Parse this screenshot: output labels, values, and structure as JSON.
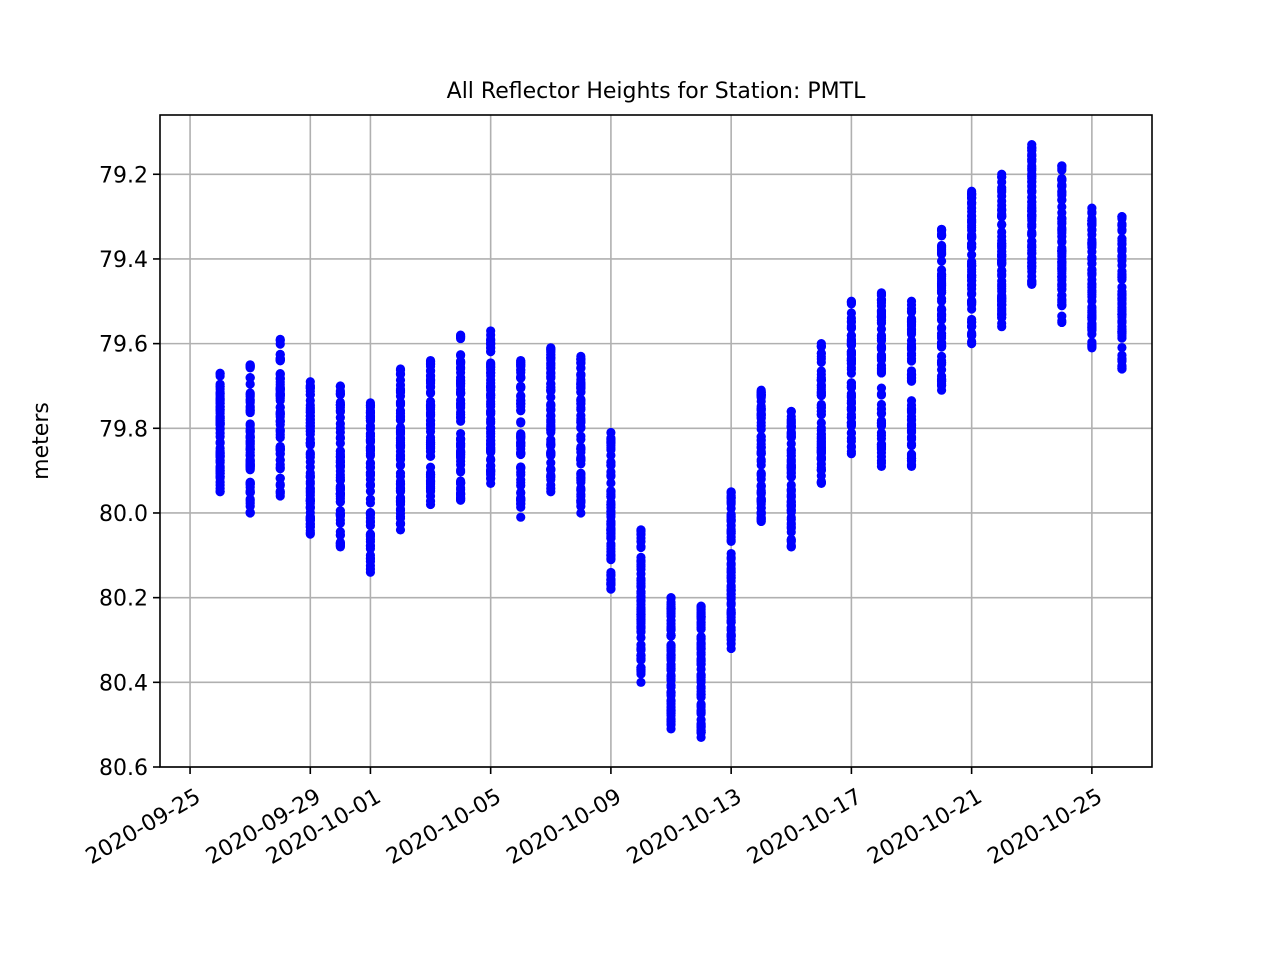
{
  "chart_data": {
    "type": "scatter",
    "title": "All Reflector Heights for Station: PMTL",
    "xlabel": "",
    "ylabel": "meters",
    "y_inverted": true,
    "ylim": [
      80.6,
      79.06
    ],
    "xlim": [
      "2020-09-24",
      "2020-10-27"
    ],
    "grid": true,
    "marker_color": "#0000ff",
    "x_ticks": [
      "2020-09-25",
      "2020-09-29",
      "2020-10-01",
      "2020-10-05",
      "2020-10-09",
      "2020-10-13",
      "2020-10-17",
      "2020-10-21",
      "2020-10-25"
    ],
    "y_ticks": [
      "79.2",
      "79.4",
      "79.6",
      "79.8",
      "80.0",
      "80.2",
      "80.4",
      "80.6"
    ],
    "daily_ranges": [
      {
        "date": "2020-09-26",
        "min": 79.67,
        "max": 79.95
      },
      {
        "date": "2020-09-27",
        "min": 79.65,
        "max": 80.0
      },
      {
        "date": "2020-09-28",
        "min": 79.59,
        "max": 79.96
      },
      {
        "date": "2020-09-29",
        "min": 79.69,
        "max": 80.05
      },
      {
        "date": "2020-09-30",
        "min": 79.7,
        "max": 80.08
      },
      {
        "date": "2020-10-01",
        "min": 79.74,
        "max": 80.14
      },
      {
        "date": "2020-10-02",
        "min": 79.66,
        "max": 80.04
      },
      {
        "date": "2020-10-03",
        "min": 79.64,
        "max": 79.98
      },
      {
        "date": "2020-10-04",
        "min": 79.58,
        "max": 79.97
      },
      {
        "date": "2020-10-05",
        "min": 79.57,
        "max": 79.93
      },
      {
        "date": "2020-10-06",
        "min": 79.64,
        "max": 80.01
      },
      {
        "date": "2020-10-07",
        "min": 79.61,
        "max": 79.95
      },
      {
        "date": "2020-10-08",
        "min": 79.63,
        "max": 80.0
      },
      {
        "date": "2020-10-09",
        "min": 79.81,
        "max": 80.18
      },
      {
        "date": "2020-10-10",
        "min": 80.04,
        "max": 80.4
      },
      {
        "date": "2020-10-11",
        "min": 80.2,
        "max": 80.51
      },
      {
        "date": "2020-10-12",
        "min": 80.22,
        "max": 80.53
      },
      {
        "date": "2020-10-13",
        "min": 79.95,
        "max": 80.32
      },
      {
        "date": "2020-10-14",
        "min": 79.71,
        "max": 80.02
      },
      {
        "date": "2020-10-15",
        "min": 79.76,
        "max": 80.08
      },
      {
        "date": "2020-10-16",
        "min": 79.6,
        "max": 79.93
      },
      {
        "date": "2020-10-17",
        "min": 79.5,
        "max": 79.86
      },
      {
        "date": "2020-10-18",
        "min": 79.48,
        "max": 79.89
      },
      {
        "date": "2020-10-19",
        "min": 79.5,
        "max": 79.89
      },
      {
        "date": "2020-10-20",
        "min": 79.33,
        "max": 79.71
      },
      {
        "date": "2020-10-21",
        "min": 79.24,
        "max": 79.6
      },
      {
        "date": "2020-10-22",
        "min": 79.2,
        "max": 79.56
      },
      {
        "date": "2020-10-23",
        "min": 79.13,
        "max": 79.46
      },
      {
        "date": "2020-10-24",
        "min": 79.18,
        "max": 79.55
      },
      {
        "date": "2020-10-25",
        "min": 79.28,
        "max": 79.61
      },
      {
        "date": "2020-10-26",
        "min": 79.3,
        "max": 79.66
      }
    ]
  }
}
